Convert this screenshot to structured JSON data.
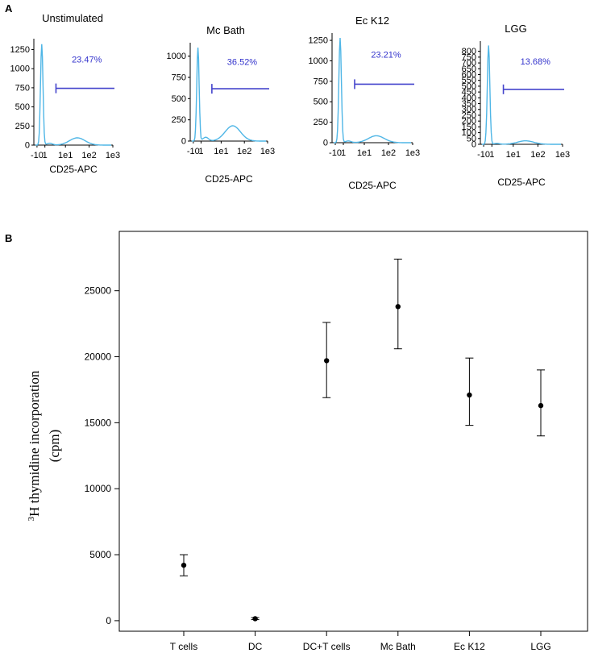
{
  "panel_a": {
    "letter": "A",
    "colors": {
      "curve": "#4fb6e6",
      "gate": "#4444cc",
      "pct_text": "#3333cc",
      "axis": "#000000"
    },
    "x_tick_labels": [
      "-10",
      "1",
      "1e1",
      "1e2",
      "1e3"
    ],
    "x_axis_label": "CD25-APC",
    "plots": [
      {
        "title": "Unstimulated",
        "percent": "23.47%",
        "y_ticks": [
          0,
          250,
          500,
          750,
          1000,
          1250
        ],
        "y_max": 1350,
        "peak": 1320,
        "bump": 95
      },
      {
        "title": "Mc Bath",
        "percent": "36.52%",
        "y_ticks": [
          0,
          250,
          500,
          750,
          1000
        ],
        "y_max": 1120,
        "peak": 1100,
        "bump": 180
      },
      {
        "title": "Ec K12",
        "percent": "23.21%",
        "y_ticks": [
          0,
          250,
          500,
          750,
          1000,
          1250
        ],
        "y_max": 1300,
        "peak": 1280,
        "bump": 85
      },
      {
        "title": "LGG",
        "percent": "13.68%",
        "y_ticks": [
          0,
          50,
          100,
          150,
          200,
          250,
          300,
          350,
          400,
          450,
          500,
          550,
          600,
          650,
          700,
          750,
          800
        ],
        "y_max": 860,
        "peak": 850,
        "bump": 30
      }
    ]
  },
  "chart_data": {
    "type": "scatter",
    "panel_letter": "B",
    "title": "",
    "xlabel": "",
    "ylabel_superscript": "3",
    "ylabel_line1": "H thymidine incorporation",
    "ylabel_line2": "(cpm)",
    "ylim": [
      -800,
      29500
    ],
    "y_ticks": [
      0,
      5000,
      10000,
      15000,
      20000,
      25000
    ],
    "categories": [
      "T cells",
      "DC",
      "DC+T cells",
      "Mc Bath",
      "Ec K12",
      "LGG"
    ],
    "series": [
      {
        "name": "3H thymidine incorporation",
        "values": [
          4200,
          150,
          19700,
          23800,
          17100,
          16300
        ],
        "error_low": [
          3400,
          80,
          16900,
          20600,
          14800,
          14000
        ],
        "error_high": [
          5000,
          230,
          22600,
          27400,
          19900,
          19000
        ]
      }
    ]
  }
}
